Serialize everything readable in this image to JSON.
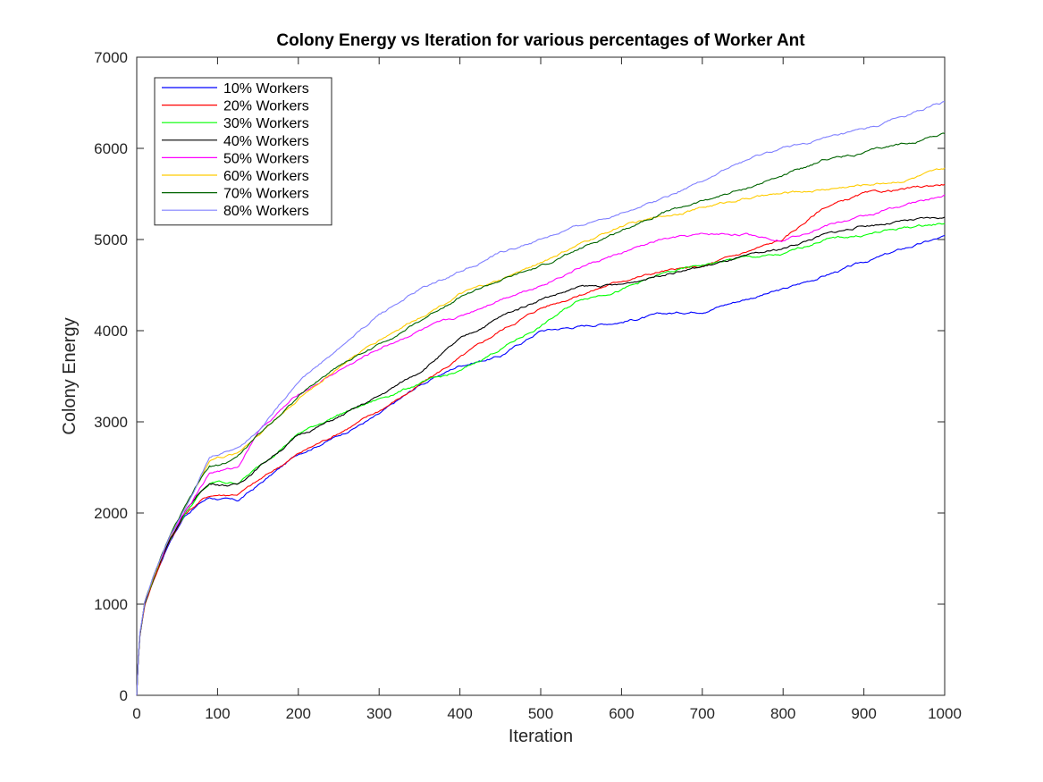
{
  "chart_data": {
    "type": "line",
    "title": "Colony Energy vs Iteration for various percentages of Worker Ant",
    "xlabel": "Iteration",
    "ylabel": "Colony Energy",
    "xlim": [
      0,
      1000
    ],
    "ylim": [
      0,
      7000
    ],
    "xticks": [
      0,
      100,
      200,
      300,
      400,
      500,
      600,
      700,
      800,
      900,
      1000
    ],
    "yticks": [
      0,
      1000,
      2000,
      3000,
      4000,
      5000,
      6000,
      7000
    ],
    "grid": false,
    "legend_position": "top-left",
    "x": [
      0,
      3,
      10,
      20,
      40,
      60,
      80,
      90,
      100,
      110,
      125,
      150,
      200,
      250,
      300,
      350,
      400,
      450,
      500,
      550,
      600,
      650,
      700,
      750,
      800,
      850,
      900,
      950,
      1000
    ],
    "series": [
      {
        "name": "10% Workers",
        "color": "#0000ff",
        "values": [
          0,
          600,
          1000,
          1250,
          1680,
          1980,
          2120,
          2170,
          2160,
          2150,
          2130,
          2300,
          2650,
          2850,
          3080,
          3400,
          3620,
          3720,
          4000,
          4050,
          4100,
          4180,
          4220,
          4340,
          4450,
          4600,
          4750,
          4900,
          5030
        ]
      },
      {
        "name": "20% Workers",
        "color": "#ff0000",
        "values": [
          0,
          600,
          1000,
          1250,
          1690,
          1990,
          2140,
          2190,
          2200,
          2200,
          2210,
          2350,
          2650,
          2880,
          3120,
          3400,
          3700,
          4000,
          4250,
          4400,
          4550,
          4650,
          4700,
          4850,
          5000,
          5350,
          5500,
          5550,
          5610
        ]
      },
      {
        "name": "30% Workers",
        "color": "#00ff00",
        "values": [
          0,
          610,
          1010,
          1260,
          1700,
          2000,
          2230,
          2310,
          2340,
          2330,
          2330,
          2500,
          2870,
          3080,
          3250,
          3420,
          3550,
          3800,
          4050,
          4350,
          4450,
          4620,
          4720,
          4800,
          4830,
          5000,
          5050,
          5130,
          5180
        ]
      },
      {
        "name": "40% Workers",
        "color": "#000000",
        "values": [
          0,
          610,
          1010,
          1260,
          1700,
          2010,
          2250,
          2320,
          2320,
          2310,
          2310,
          2500,
          2850,
          3050,
          3280,
          3550,
          3900,
          4150,
          4350,
          4480,
          4500,
          4620,
          4700,
          4800,
          4900,
          5050,
          5150,
          5200,
          5240
        ]
      },
      {
        "name": "50% Workers",
        "color": "#ff00ff",
        "values": [
          0,
          620,
          1020,
          1270,
          1720,
          2030,
          2300,
          2440,
          2460,
          2470,
          2500,
          2900,
          3300,
          3560,
          3800,
          4000,
          4150,
          4350,
          4500,
          4700,
          4850,
          5000,
          5050,
          5060,
          5000,
          5150,
          5250,
          5380,
          5480
        ]
      },
      {
        "name": "60% Workers",
        "color": "#ffcc00",
        "values": [
          0,
          620,
          1020,
          1280,
          1730,
          2060,
          2400,
          2580,
          2610,
          2620,
          2660,
          2860,
          3250,
          3600,
          3900,
          4150,
          4400,
          4550,
          4750,
          4950,
          5150,
          5250,
          5350,
          5450,
          5500,
          5550,
          5600,
          5650,
          5770
        ]
      },
      {
        "name": "70% Workers",
        "color": "#006400",
        "values": [
          0,
          620,
          1020,
          1280,
          1730,
          2060,
          2380,
          2500,
          2520,
          2550,
          2620,
          2850,
          3280,
          3620,
          3850,
          4100,
          4380,
          4550,
          4700,
          4900,
          5100,
          5300,
          5420,
          5550,
          5700,
          5880,
          5950,
          6050,
          6170
        ]
      },
      {
        "name": "80% Workers",
        "color": "#8080ff",
        "values": [
          0,
          630,
          1030,
          1290,
          1740,
          2080,
          2420,
          2600,
          2640,
          2670,
          2720,
          2900,
          3450,
          3800,
          4180,
          4450,
          4650,
          4850,
          5000,
          5150,
          5300,
          5450,
          5650,
          5850,
          6000,
          6100,
          6200,
          6350,
          6510
        ]
      }
    ]
  }
}
